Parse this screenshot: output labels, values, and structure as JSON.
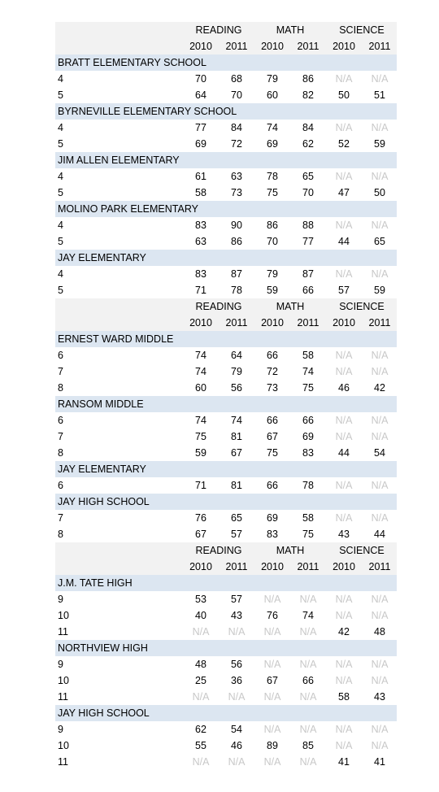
{
  "sections": [
    {
      "header": {
        "subjects": [
          "READING",
          "MATH",
          "SCIENCE"
        ],
        "years": [
          2010,
          2011,
          2010,
          2011,
          2010,
          2011
        ]
      },
      "schools": [
        {
          "name": "BRATT ELEMENTARY SCHOOL",
          "rows": [
            {
              "grade": "4",
              "values": [
                70,
                68,
                79,
                86,
                "N/A",
                "N/A"
              ]
            },
            {
              "grade": "5",
              "values": [
                64,
                70,
                60,
                82,
                50,
                51
              ]
            }
          ]
        },
        {
          "name": "BYRNEVILLE ELEMENTARY SCHOOL",
          "rows": [
            {
              "grade": "4",
              "values": [
                77,
                84,
                74,
                84,
                "N/A",
                "N/A"
              ]
            },
            {
              "grade": "5",
              "values": [
                69,
                72,
                69,
                62,
                52,
                59
              ]
            }
          ]
        },
        {
          "name": "JIM ALLEN ELEMENTARY",
          "rows": [
            {
              "grade": "4",
              "values": [
                61,
                63,
                78,
                65,
                "N/A",
                "N/A"
              ]
            },
            {
              "grade": "5",
              "values": [
                58,
                73,
                75,
                70,
                47,
                50
              ]
            }
          ]
        },
        {
          "name": "MOLINO PARK ELEMENTARY",
          "rows": [
            {
              "grade": "4",
              "values": [
                83,
                90,
                86,
                88,
                "N/A",
                "N/A"
              ]
            },
            {
              "grade": "5",
              "values": [
                63,
                86,
                70,
                77,
                44,
                65
              ]
            }
          ]
        },
        {
          "name": "JAY ELEMENTARY",
          "rows": [
            {
              "grade": "4",
              "values": [
                83,
                87,
                79,
                87,
                "N/A",
                "N/A"
              ]
            },
            {
              "grade": "5",
              "values": [
                71,
                78,
                59,
                66,
                57,
                59
              ]
            }
          ]
        }
      ]
    },
    {
      "header": {
        "subjects": [
          "READING",
          "MATH",
          "SCIENCE"
        ],
        "years": [
          2010,
          2011,
          2010,
          2011,
          2010,
          2011
        ]
      },
      "schools": [
        {
          "name": "ERNEST WARD MIDDLE",
          "rows": [
            {
              "grade": "6",
              "values": [
                74,
                64,
                66,
                58,
                "N/A",
                "N/A"
              ]
            },
            {
              "grade": "7",
              "values": [
                74,
                79,
                72,
                74,
                "N/A",
                "N/A"
              ]
            },
            {
              "grade": "8",
              "values": [
                60,
                56,
                73,
                75,
                46,
                42
              ]
            }
          ]
        },
        {
          "name": "RANSOM MIDDLE",
          "rows": [
            {
              "grade": "6",
              "values": [
                74,
                74,
                66,
                66,
                "N/A",
                "N/A"
              ]
            },
            {
              "grade": "7",
              "values": [
                75,
                81,
                67,
                69,
                "N/A",
                "N/A"
              ]
            },
            {
              "grade": "8",
              "values": [
                59,
                67,
                75,
                83,
                44,
                54
              ]
            }
          ]
        },
        {
          "name": "JAY ELEMENTARY",
          "rows": [
            {
              "grade": "6",
              "values": [
                71,
                81,
                66,
                78,
                "N/A",
                "N/A"
              ]
            }
          ]
        },
        {
          "name": "JAY HIGH SCHOOL",
          "rows": [
            {
              "grade": "7",
              "values": [
                76,
                65,
                69,
                58,
                "N/A",
                "N/A"
              ]
            },
            {
              "grade": "8",
              "values": [
                67,
                57,
                83,
                75,
                43,
                44
              ]
            }
          ]
        }
      ]
    },
    {
      "header": {
        "subjects": [
          "READING",
          "MATH",
          "SCIENCE"
        ],
        "years": [
          2010,
          2011,
          2010,
          2011,
          2010,
          2011
        ]
      },
      "schools": [
        {
          "name": "J.M. TATE HIGH",
          "rows": [
            {
              "grade": "9",
              "values": [
                53,
                57,
                "N/A",
                "N/A",
                "N/A",
                "N/A"
              ]
            },
            {
              "grade": "10",
              "values": [
                40,
                43,
                76,
                74,
                "N/A",
                "N/A"
              ]
            },
            {
              "grade": "11",
              "values": [
                "N/A",
                "N/A",
                "N/A",
                "N/A",
                42,
                48
              ]
            }
          ]
        },
        {
          "name": "NORTHVIEW HIGH",
          "rows": [
            {
              "grade": "9",
              "values": [
                48,
                56,
                "N/A",
                "N/A",
                "N/A",
                "N/A"
              ]
            },
            {
              "grade": "10",
              "values": [
                25,
                36,
                67,
                66,
                "N/A",
                "N/A"
              ]
            },
            {
              "grade": "11",
              "values": [
                "N/A",
                "N/A",
                "N/A",
                "N/A",
                58,
                43
              ]
            }
          ]
        },
        {
          "name": "JAY HIGH SCHOOL",
          "rows": [
            {
              "grade": "9",
              "values": [
                62,
                54,
                "N/A",
                "N/A",
                "N/A",
                "N/A"
              ]
            },
            {
              "grade": "10",
              "values": [
                55,
                46,
                89,
                85,
                "N/A",
                "N/A"
              ]
            },
            {
              "grade": "11",
              "values": [
                "N/A",
                "N/A",
                "N/A",
                "N/A",
                41,
                41
              ]
            }
          ]
        }
      ]
    }
  ]
}
